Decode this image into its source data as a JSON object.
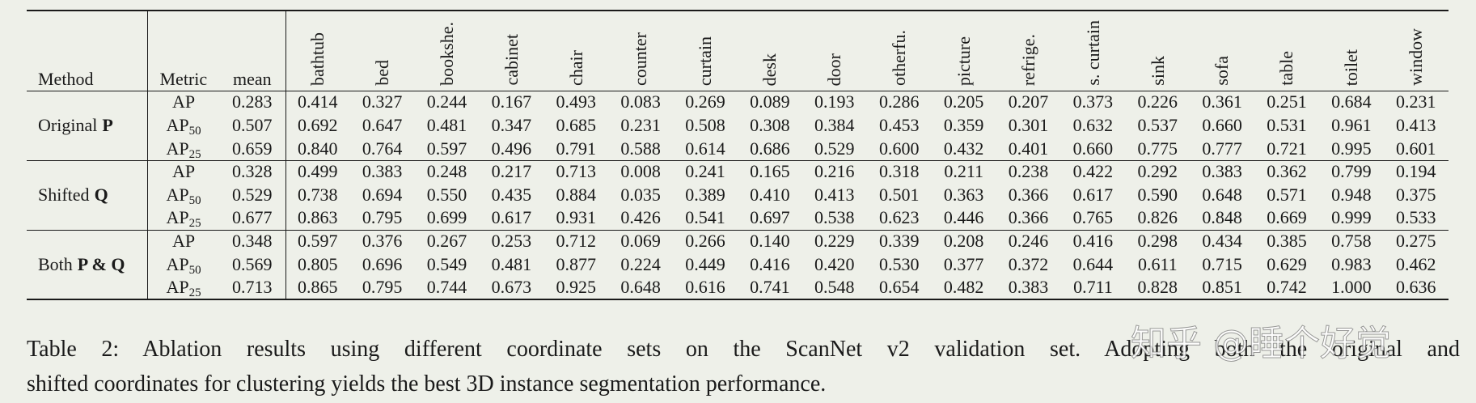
{
  "table": {
    "columns": [
      "Method",
      "Metric",
      "mean",
      "bathtub",
      "bed",
      "bookshe.",
      "cabinet",
      "chair",
      "counter",
      "curtain",
      "desk",
      "door",
      "otherfu.",
      "picture",
      "refrige.",
      "s. curtain",
      "sink",
      "sofa",
      "table",
      "toilet",
      "window"
    ],
    "groups": [
      {
        "method": "Original",
        "symbol": "P",
        "rows": [
          {
            "metric": "AP",
            "cells": [
              "0.283",
              "0.414",
              "0.327",
              "0.244",
              "0.167",
              "0.493",
              "0.083",
              "0.269",
              "0.089",
              "0.193",
              "0.286",
              "0.205",
              "0.207",
              "0.373",
              "0.226",
              "0.361",
              "0.251",
              "0.684",
              "0.231"
            ]
          },
          {
            "metric": "AP",
            "sub": "50",
            "cells": [
              "0.507",
              "0.692",
              "0.647",
              "0.481",
              "0.347",
              "0.685",
              "0.231",
              "0.508",
              "0.308",
              "0.384",
              "0.453",
              "0.359",
              "0.301",
              "0.632",
              "0.537",
              "0.660",
              "0.531",
              "0.961",
              "0.413"
            ]
          },
          {
            "metric": "AP",
            "sub": "25",
            "cells": [
              "0.659",
              "0.840",
              "0.764",
              "0.597",
              "0.496",
              "0.791",
              "0.588",
              "0.614",
              "0.686",
              "0.529",
              "0.600",
              "0.432",
              "0.401",
              "0.660",
              "0.775",
              "0.777",
              "0.721",
              "0.995",
              "0.601"
            ]
          }
        ]
      },
      {
        "method": "Shifted",
        "symbol": "Q",
        "rows": [
          {
            "metric": "AP",
            "cells": [
              "0.328",
              "0.499",
              "0.383",
              "0.248",
              "0.217",
              "0.713",
              "0.008",
              "0.241",
              "0.165",
              "0.216",
              "0.318",
              "0.211",
              "0.238",
              "0.422",
              "0.292",
              "0.383",
              "0.362",
              "0.799",
              "0.194"
            ]
          },
          {
            "metric": "AP",
            "sub": "50",
            "cells": [
              "0.529",
              "0.738",
              "0.694",
              "0.550",
              "0.435",
              "0.884",
              "0.035",
              "0.389",
              "0.410",
              "0.413",
              "0.501",
              "0.363",
              "0.366",
              "0.617",
              "0.590",
              "0.648",
              "0.571",
              "0.948",
              "0.375"
            ]
          },
          {
            "metric": "AP",
            "sub": "25",
            "cells": [
              "0.677",
              "0.863",
              "0.795",
              "0.699",
              "0.617",
              "0.931",
              "0.426",
              "0.541",
              "0.697",
              "0.538",
              "0.623",
              "0.446",
              "0.366",
              "0.765",
              "0.826",
              "0.848",
              "0.669",
              "0.999",
              "0.533"
            ]
          }
        ]
      },
      {
        "method": "Both",
        "symbol": "P & Q",
        "rows": [
          {
            "metric": "AP",
            "cells": [
              "0.348",
              "0.597",
              "0.376",
              "0.267",
              "0.253",
              "0.712",
              "0.069",
              "0.266",
              "0.140",
              "0.229",
              "0.339",
              "0.208",
              "0.246",
              "0.416",
              "0.298",
              "0.434",
              "0.385",
              "0.758",
              "0.275"
            ]
          },
          {
            "metric": "AP",
            "sub": "50",
            "cells": [
              "0.569",
              "0.805",
              "0.696",
              "0.549",
              "0.481",
              "0.877",
              "0.224",
              "0.449",
              "0.416",
              "0.420",
              "0.530",
              "0.377",
              "0.372",
              "0.644",
              "0.611",
              "0.715",
              "0.629",
              "0.983",
              "0.462"
            ]
          },
          {
            "metric": "AP",
            "sub": "25",
            "cells": [
              "0.713",
              "0.865",
              "0.795",
              "0.744",
              "0.673",
              "0.925",
              "0.648",
              "0.616",
              "0.741",
              "0.548",
              "0.654",
              "0.482",
              "0.383",
              "0.711",
              "0.828",
              "0.851",
              "0.742",
              "1.000",
              "0.636"
            ]
          }
        ]
      }
    ]
  },
  "caption": {
    "lines": [
      "Table 2: Ablation results using different coordinate sets on the ScanNet v2 validation set. Adopting both the original and",
      "shifted coordinates for clustering yields the best 3D instance segmentation performance."
    ]
  },
  "watermark": "知乎 @睡个好觉"
}
